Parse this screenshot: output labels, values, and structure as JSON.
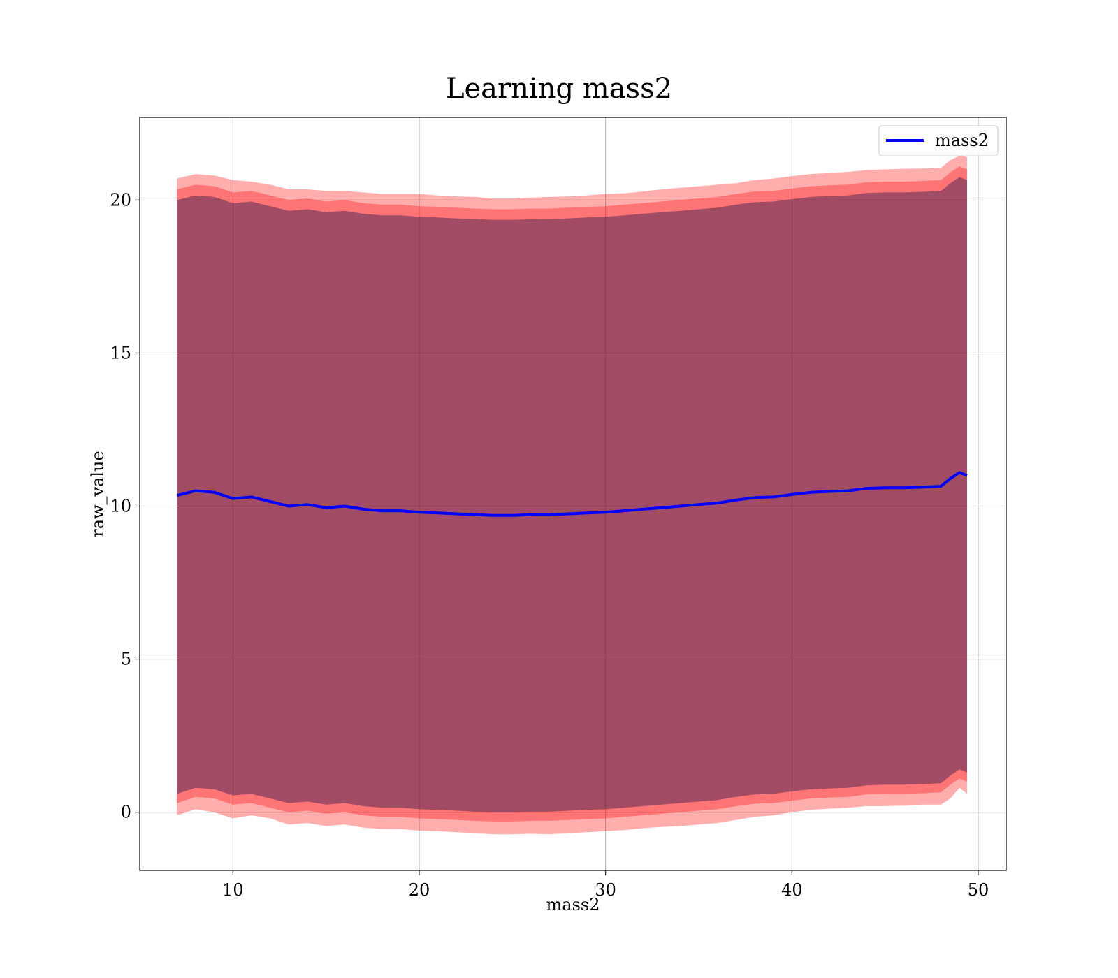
{
  "chart_data": {
    "type": "line",
    "title": "Learning mass2",
    "xlabel": "mass2",
    "ylabel": "raw_value",
    "xlim": [
      5,
      51.5
    ],
    "ylim": [
      -1.9,
      22.7
    ],
    "grid": true,
    "legend_position": "top-right",
    "xticks": [
      10,
      20,
      30,
      40,
      50
    ],
    "yticks": [
      0,
      5,
      10,
      15,
      20
    ],
    "x": [
      7.0,
      8.0,
      9.0,
      10.0,
      11.0,
      12.0,
      13.0,
      14.0,
      15.0,
      16.0,
      17.0,
      18.0,
      19.0,
      20.0,
      21.0,
      22.0,
      23.0,
      24.0,
      25.0,
      26.0,
      27.0,
      28.0,
      29.0,
      30.0,
      31.0,
      32.0,
      33.0,
      34.0,
      35.0,
      36.0,
      37.0,
      38.0,
      39.0,
      40.0,
      41.0,
      42.0,
      43.0,
      44.0,
      45.0,
      46.0,
      47.0,
      48.0,
      48.5,
      49.0,
      49.4
    ],
    "series": [
      {
        "name": "mass2",
        "color": "#0000ff",
        "values": [
          10.35,
          10.5,
          10.45,
          10.25,
          10.3,
          10.15,
          10.0,
          10.05,
          9.95,
          10.0,
          9.9,
          9.85,
          9.85,
          9.8,
          9.78,
          9.75,
          9.72,
          9.7,
          9.7,
          9.72,
          9.72,
          9.75,
          9.78,
          9.8,
          9.85,
          9.9,
          9.95,
          10.0,
          10.05,
          10.1,
          10.2,
          10.28,
          10.3,
          10.38,
          10.45,
          10.48,
          10.5,
          10.58,
          10.6,
          10.6,
          10.62,
          10.65,
          10.9,
          11.1,
          11.0
        ]
      }
    ],
    "bands": [
      {
        "color": "#ff0000",
        "opacity": 0.32,
        "lower": [
          -0.1,
          0.1,
          0.0,
          -0.2,
          -0.1,
          -0.2,
          -0.4,
          -0.35,
          -0.45,
          -0.4,
          -0.5,
          -0.55,
          -0.55,
          -0.6,
          -0.62,
          -0.65,
          -0.68,
          -0.72,
          -0.72,
          -0.7,
          -0.72,
          -0.68,
          -0.65,
          -0.62,
          -0.58,
          -0.52,
          -0.48,
          -0.45,
          -0.4,
          -0.35,
          -0.25,
          -0.15,
          -0.1,
          0.0,
          0.08,
          0.12,
          0.15,
          0.2,
          0.2,
          0.22,
          0.25,
          0.25,
          0.45,
          0.8,
          0.6
        ],
        "upper": [
          20.7,
          20.85,
          20.8,
          20.65,
          20.6,
          20.5,
          20.35,
          20.35,
          20.3,
          20.3,
          20.25,
          20.2,
          20.2,
          20.2,
          20.15,
          20.12,
          20.1,
          20.05,
          20.05,
          20.08,
          20.1,
          20.12,
          20.15,
          20.2,
          20.22,
          20.28,
          20.35,
          20.4,
          20.45,
          20.5,
          20.55,
          20.65,
          20.7,
          20.78,
          20.85,
          20.88,
          20.92,
          20.98,
          21.0,
          21.02,
          21.03,
          21.05,
          21.3,
          21.45,
          21.4
        ]
      },
      {
        "color": "#ff0000",
        "opacity": 0.32,
        "lower": [
          0.3,
          0.5,
          0.45,
          0.25,
          0.3,
          0.15,
          0.0,
          0.05,
          -0.05,
          0.0,
          -0.1,
          -0.15,
          -0.15,
          -0.2,
          -0.22,
          -0.25,
          -0.28,
          -0.3,
          -0.3,
          -0.28,
          -0.28,
          -0.25,
          -0.22,
          -0.2,
          -0.15,
          -0.1,
          -0.05,
          0.0,
          0.05,
          0.1,
          0.2,
          0.28,
          0.3,
          0.38,
          0.45,
          0.48,
          0.5,
          0.58,
          0.6,
          0.6,
          0.62,
          0.65,
          0.9,
          1.1,
          1.0
        ],
        "upper": [
          20.35,
          20.5,
          20.45,
          20.25,
          20.3,
          20.15,
          20.0,
          20.05,
          19.95,
          20.0,
          19.9,
          19.85,
          19.85,
          19.8,
          19.78,
          19.75,
          19.72,
          19.7,
          19.7,
          19.72,
          19.72,
          19.75,
          19.78,
          19.8,
          19.85,
          19.9,
          19.95,
          20.0,
          20.05,
          20.1,
          20.2,
          20.28,
          20.3,
          20.38,
          20.45,
          20.48,
          20.5,
          20.58,
          20.6,
          20.6,
          20.62,
          20.65,
          20.9,
          21.1,
          21.0
        ]
      },
      {
        "color": "#301850",
        "opacity": 0.45,
        "lower": [
          0.6,
          0.8,
          0.75,
          0.55,
          0.6,
          0.45,
          0.3,
          0.35,
          0.25,
          0.3,
          0.2,
          0.15,
          0.15,
          0.1,
          0.08,
          0.05,
          0.02,
          0.0,
          0.0,
          0.02,
          0.02,
          0.05,
          0.08,
          0.1,
          0.15,
          0.2,
          0.25,
          0.3,
          0.35,
          0.4,
          0.5,
          0.58,
          0.6,
          0.68,
          0.75,
          0.78,
          0.8,
          0.88,
          0.9,
          0.9,
          0.92,
          0.95,
          1.2,
          1.4,
          1.3
        ],
        "upper": [
          20.0,
          20.15,
          20.1,
          19.9,
          19.95,
          19.8,
          19.65,
          19.7,
          19.6,
          19.65,
          19.55,
          19.5,
          19.5,
          19.45,
          19.43,
          19.4,
          19.38,
          19.35,
          19.35,
          19.37,
          19.38,
          19.4,
          19.43,
          19.45,
          19.5,
          19.55,
          19.6,
          19.65,
          19.7,
          19.75,
          19.85,
          19.93,
          19.95,
          20.03,
          20.1,
          20.13,
          20.15,
          20.23,
          20.25,
          20.25,
          20.27,
          20.3,
          20.55,
          20.75,
          20.65
        ]
      }
    ]
  }
}
